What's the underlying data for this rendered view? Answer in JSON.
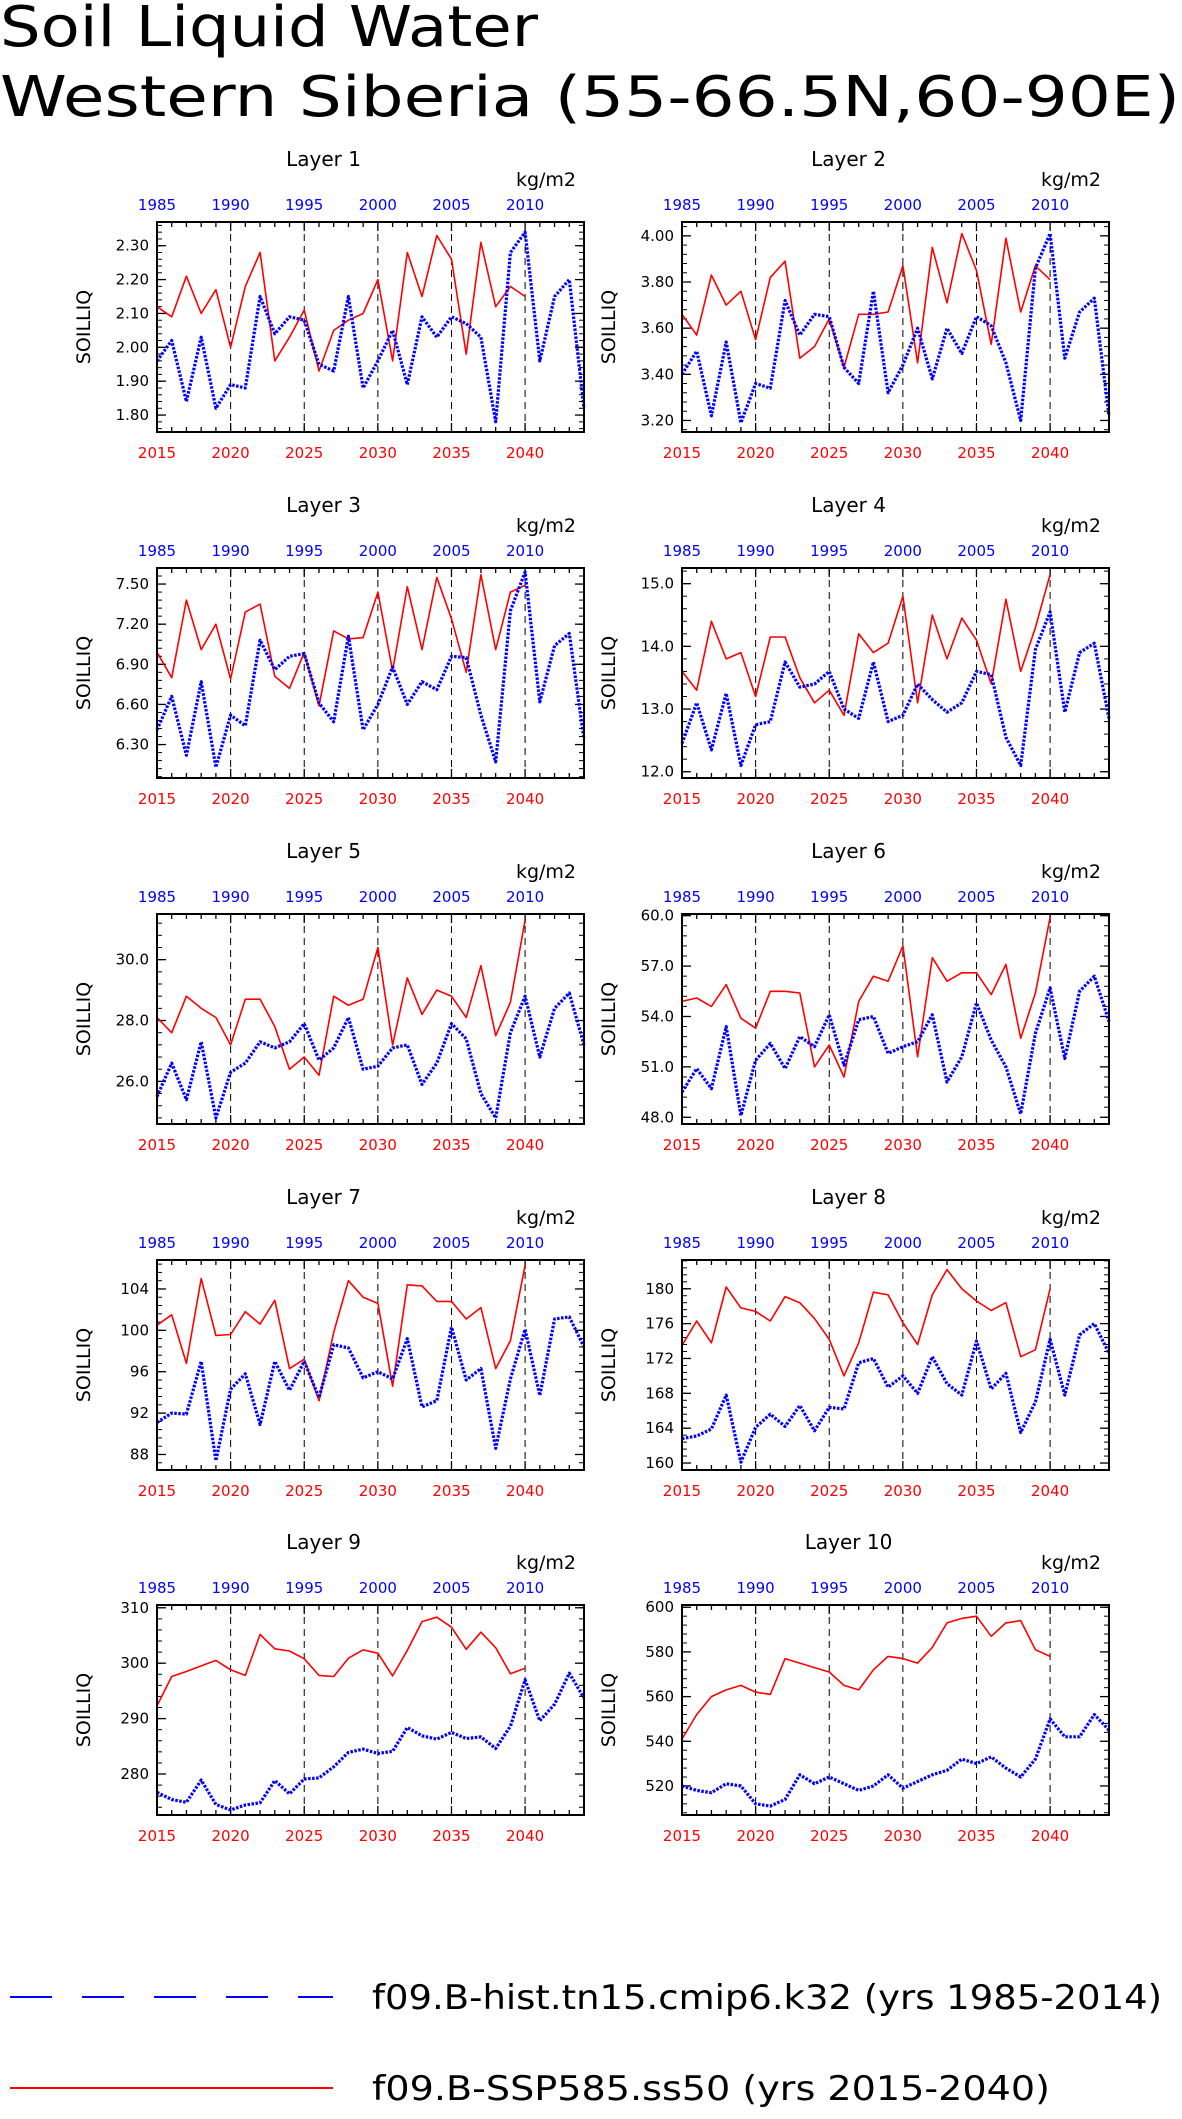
{
  "title_line1": "Soil Liquid Water",
  "title_line2": "Western Siberia (55-66.5N,60-90E)",
  "ylabel": "SOILLIQ",
  "units": "kg/m2",
  "legend": [
    {
      "label": "f09.B-hist.tn15.cmip6.k32 (yrs 1985-2014)",
      "color": "#0000ff",
      "style": "dashed"
    },
    {
      "label": "f09.B-SSP585.ss50 (yrs 2015-2040)",
      "color": "#ff0000",
      "style": "solid"
    }
  ],
  "chart_data": [
    {
      "type": "line",
      "title": "Layer 1",
      "xlabel": "",
      "ylabel": "SOILLIQ",
      "units": "kg/m2",
      "x_bottom_ticks": [
        "2015",
        "2020",
        "2025",
        "2030",
        "2035",
        "2040"
      ],
      "x_top_ticks": [
        "1985",
        "1990",
        "1995",
        "2000",
        "2005",
        "2010"
      ],
      "y_ticks": [
        "1.80",
        "1.90",
        "2.00",
        "2.10",
        "2.20",
        "2.30"
      ],
      "ylim": [
        1.75,
        2.37
      ],
      "series": [
        {
          "color": "#ff0000",
          "x_start": 2015,
          "values": [
            2.12,
            2.09,
            2.21,
            2.1,
            2.17,
            2.0,
            2.18,
            2.28,
            1.96,
            2.03,
            2.11,
            1.93,
            2.05,
            2.08,
            2.1,
            2.2,
            1.96,
            2.28,
            2.15,
            2.33,
            2.26,
            1.98,
            2.31,
            2.12,
            2.18,
            2.15
          ]
        },
        {
          "color": "#0000ff",
          "x_start": 2015,
          "values": [
            1.96,
            2.02,
            1.84,
            2.03,
            1.82,
            1.89,
            1.88,
            2.15,
            2.04,
            2.09,
            2.08,
            1.95,
            1.93,
            2.15,
            1.88,
            1.96,
            2.05,
            1.89,
            2.09,
            2.03,
            2.09,
            2.07,
            2.03,
            1.78,
            2.28,
            2.34,
            1.96,
            2.15,
            2.2,
            1.82
          ]
        }
      ]
    },
    {
      "type": "line",
      "title": "Layer 2",
      "xlabel": "",
      "ylabel": "SOILLIQ",
      "units": "kg/m2",
      "x_bottom_ticks": [
        "2015",
        "2020",
        "2025",
        "2030",
        "2035",
        "2040"
      ],
      "x_top_ticks": [
        "1985",
        "1990",
        "1995",
        "2000",
        "2005",
        "2010"
      ],
      "y_ticks": [
        "3.20",
        "3.40",
        "3.60",
        "3.80",
        "4.00"
      ],
      "ylim": [
        3.15,
        4.06
      ],
      "series": [
        {
          "color": "#ff0000",
          "x_start": 2015,
          "values": [
            3.66,
            3.57,
            3.83,
            3.7,
            3.76,
            3.55,
            3.82,
            3.89,
            3.47,
            3.52,
            3.64,
            3.43,
            3.66,
            3.66,
            3.67,
            3.87,
            3.45,
            3.95,
            3.71,
            4.01,
            3.85,
            3.53,
            3.99,
            3.67,
            3.87,
            3.81
          ]
        },
        {
          "color": "#0000ff",
          "x_start": 2015,
          "values": [
            3.4,
            3.5,
            3.22,
            3.54,
            3.19,
            3.36,
            3.34,
            3.72,
            3.57,
            3.66,
            3.65,
            3.43,
            3.36,
            3.76,
            3.32,
            3.44,
            3.6,
            3.38,
            3.6,
            3.49,
            3.65,
            3.61,
            3.45,
            3.2,
            3.86,
            4.01,
            3.47,
            3.67,
            3.73,
            3.22
          ]
        }
      ]
    },
    {
      "type": "line",
      "title": "Layer 3",
      "xlabel": "",
      "ylabel": "SOILLIQ",
      "units": "kg/m2",
      "x_bottom_ticks": [
        "2015",
        "2020",
        "2025",
        "2030",
        "2035",
        "2040"
      ],
      "x_top_ticks": [
        "1985",
        "1990",
        "1995",
        "2000",
        "2005",
        "2010"
      ],
      "y_ticks": [
        "6.30",
        "6.60",
        "6.90",
        "7.20",
        "7.50"
      ],
      "ylim": [
        6.05,
        7.62
      ],
      "series": [
        {
          "color": "#ff0000",
          "x_start": 2015,
          "values": [
            6.99,
            6.8,
            7.38,
            7.01,
            7.2,
            6.79,
            7.29,
            7.35,
            6.81,
            6.72,
            6.99,
            6.59,
            7.15,
            7.09,
            7.1,
            7.44,
            6.85,
            7.48,
            7.01,
            7.55,
            7.24,
            6.84,
            7.57,
            7.01,
            7.44,
            7.49
          ]
        },
        {
          "color": "#0000ff",
          "x_start": 2015,
          "values": [
            6.41,
            6.66,
            6.22,
            6.77,
            6.13,
            6.52,
            6.44,
            7.08,
            6.86,
            6.96,
            6.98,
            6.61,
            6.47,
            7.11,
            6.41,
            6.6,
            6.88,
            6.6,
            6.77,
            6.71,
            6.96,
            6.95,
            6.52,
            6.17,
            7.3,
            7.59,
            6.62,
            7.04,
            7.13,
            6.34
          ]
        }
      ]
    },
    {
      "type": "line",
      "title": "Layer 4",
      "xlabel": "",
      "ylabel": "SOILLIQ",
      "units": "kg/m2",
      "x_bottom_ticks": [
        "2015",
        "2020",
        "2025",
        "2030",
        "2035",
        "2040"
      ],
      "x_top_ticks": [
        "1985",
        "1990",
        "1995",
        "2000",
        "2005",
        "2010"
      ],
      "y_ticks": [
        "12.0",
        "13.0",
        "14.0",
        "15.0"
      ],
      "ylim": [
        11.9,
        15.25
      ],
      "series": [
        {
          "color": "#ff0000",
          "x_start": 2015,
          "values": [
            13.6,
            13.3,
            14.4,
            13.8,
            13.9,
            13.2,
            14.15,
            14.15,
            13.5,
            13.1,
            13.3,
            12.9,
            14.2,
            13.9,
            14.05,
            14.8,
            13.1,
            14.5,
            13.8,
            14.45,
            14.1,
            13.4,
            14.75,
            13.6,
            14.3,
            15.15
          ]
        },
        {
          "color": "#0000ff",
          "x_start": 2015,
          "values": [
            12.45,
            13.1,
            12.35,
            13.25,
            12.1,
            12.75,
            12.8,
            13.75,
            13.35,
            13.4,
            13.6,
            13.0,
            12.85,
            13.75,
            12.8,
            12.9,
            13.4,
            13.15,
            12.95,
            13.1,
            13.6,
            13.55,
            12.55,
            12.1,
            13.95,
            14.55,
            12.95,
            13.9,
            14.05,
            12.85
          ]
        }
      ]
    },
    {
      "type": "line",
      "title": "Layer 5",
      "xlabel": "",
      "ylabel": "SOILLIQ",
      "units": "kg/m2",
      "x_bottom_ticks": [
        "2015",
        "2020",
        "2025",
        "2030",
        "2035",
        "2040"
      ],
      "x_top_ticks": [
        "1985",
        "1990",
        "1995",
        "2000",
        "2005",
        "2010"
      ],
      "y_ticks": [
        "26.0",
        "28.0",
        "30.0"
      ],
      "ylim": [
        24.6,
        31.5
      ],
      "series": [
        {
          "color": "#ff0000",
          "x_start": 2015,
          "values": [
            28.1,
            27.6,
            28.8,
            28.4,
            28.1,
            27.2,
            28.7,
            28.7,
            27.8,
            26.4,
            26.8,
            26.2,
            28.8,
            28.5,
            28.7,
            30.4,
            27.2,
            29.4,
            28.2,
            29.0,
            28.8,
            28.1,
            29.8,
            27.5,
            28.6,
            31.3
          ]
        },
        {
          "color": "#0000ff",
          "x_start": 2015,
          "values": [
            25.5,
            26.6,
            25.4,
            27.3,
            24.8,
            26.3,
            26.6,
            27.3,
            27.1,
            27.3,
            27.9,
            26.7,
            27.1,
            28.1,
            26.4,
            26.5,
            27.1,
            27.2,
            25.9,
            26.6,
            27.9,
            27.4,
            25.6,
            24.8,
            27.6,
            28.8,
            26.8,
            28.4,
            28.9,
            27.2
          ]
        }
      ]
    },
    {
      "type": "line",
      "title": "Layer 6",
      "xlabel": "",
      "ylabel": "SOILLIQ",
      "units": "kg/m2",
      "x_bottom_ticks": [
        "2015",
        "2020",
        "2025",
        "2030",
        "2035",
        "2040"
      ],
      "x_top_ticks": [
        "1985",
        "1990",
        "1995",
        "2000",
        "2005",
        "2010"
      ],
      "y_ticks": [
        "48.0",
        "51.0",
        "54.0",
        "57.0",
        "60.0"
      ],
      "ylim": [
        47.6,
        60.1
      ],
      "series": [
        {
          "color": "#ff0000",
          "x_start": 2015,
          "values": [
            54.9,
            55.1,
            54.6,
            55.9,
            53.9,
            53.3,
            55.5,
            55.5,
            55.4,
            51.0,
            52.3,
            50.4,
            54.9,
            56.4,
            56.1,
            58.2,
            51.6,
            57.5,
            56.1,
            56.6,
            56.6,
            55.3,
            57.1,
            52.7,
            55.4,
            59.9
          ]
        },
        {
          "color": "#0000ff",
          "x_start": 2015,
          "values": [
            49.5,
            50.9,
            49.7,
            53.4,
            48.1,
            51.4,
            52.4,
            50.9,
            52.8,
            52.2,
            54.1,
            51.1,
            53.8,
            54.0,
            51.8,
            52.2,
            52.5,
            54.1,
            50.1,
            51.6,
            54.8,
            52.6,
            51.0,
            48.2,
            53.0,
            55.7,
            51.5,
            55.5,
            56.4,
            53.7
          ]
        }
      ]
    },
    {
      "type": "line",
      "title": "Layer 7",
      "xlabel": "",
      "ylabel": "SOILLIQ",
      "units": "kg/m2",
      "x_bottom_ticks": [
        "2015",
        "2020",
        "2025",
        "2030",
        "2035",
        "2040"
      ],
      "x_top_ticks": [
        "1985",
        "1990",
        "1995",
        "2000",
        "2005",
        "2010"
      ],
      "y_ticks": [
        "88",
        "92",
        "96",
        "100",
        "104"
      ],
      "ylim": [
        86.5,
        106.8
      ],
      "series": [
        {
          "color": "#ff0000",
          "x_start": 2015,
          "values": [
            100.5,
            101.5,
            96.8,
            105.0,
            99.5,
            99.6,
            101.8,
            100.6,
            102.9,
            96.3,
            97.2,
            93.2,
            99.8,
            104.8,
            103.2,
            102.6,
            94.6,
            104.4,
            104.3,
            102.8,
            102.8,
            101.1,
            102.2,
            96.3,
            99.0,
            106.3
          ]
        },
        {
          "color": "#0000ff",
          "x_start": 2015,
          "values": [
            91.1,
            92.0,
            91.9,
            97.0,
            87.4,
            94.3,
            95.8,
            90.9,
            97.0,
            94.2,
            97.0,
            93.5,
            98.6,
            98.3,
            95.4,
            96.0,
            95.3,
            99.2,
            92.6,
            93.2,
            100.3,
            95.2,
            96.3,
            88.6,
            95.3,
            100.1,
            93.7,
            101.1,
            101.3,
            98.4
          ]
        }
      ]
    },
    {
      "type": "line",
      "title": "Layer 8",
      "xlabel": "",
      "ylabel": "SOILLIQ",
      "units": "kg/m2",
      "x_bottom_ticks": [
        "2015",
        "2020",
        "2025",
        "2030",
        "2035",
        "2040"
      ],
      "x_top_ticks": [
        "1985",
        "1990",
        "1995",
        "2000",
        "2005",
        "2010"
      ],
      "y_ticks": [
        "160",
        "164",
        "168",
        "172",
        "176",
        "180"
      ],
      "ylim": [
        159.2,
        183.3
      ],
      "series": [
        {
          "color": "#ff0000",
          "x_start": 2015,
          "values": [
            173.5,
            176.3,
            173.8,
            180.2,
            177.8,
            177.4,
            176.3,
            179.1,
            178.4,
            176.6,
            174.2,
            170.0,
            173.8,
            179.6,
            179.3,
            176.1,
            173.6,
            179.3,
            182.2,
            180.0,
            178.6,
            177.5,
            178.4,
            172.2,
            173.0,
            180.0
          ]
        },
        {
          "color": "#0000ff",
          "x_start": 2015,
          "values": [
            162.8,
            163.1,
            163.9,
            167.8,
            160.1,
            164.1,
            165.6,
            164.2,
            166.6,
            163.7,
            166.4,
            166.2,
            171.5,
            172.0,
            168.7,
            170.0,
            168.0,
            172.2,
            169.1,
            167.8,
            174.0,
            168.5,
            170.3,
            163.5,
            167.0,
            174.2,
            167.8,
            174.7,
            176.0,
            172.6
          ]
        }
      ]
    },
    {
      "type": "line",
      "title": "Layer 9",
      "xlabel": "",
      "ylabel": "SOILLIQ",
      "units": "kg/m2",
      "x_bottom_ticks": [
        "2015",
        "2020",
        "2025",
        "2030",
        "2035",
        "2040"
      ],
      "x_top_ticks": [
        "1985",
        "1990",
        "1995",
        "2000",
        "2005",
        "2010"
      ],
      "y_ticks": [
        "280",
        "290",
        "300",
        "310"
      ],
      "ylim": [
        272.6,
        310.5
      ],
      "series": [
        {
          "color": "#ff0000",
          "x_start": 2015,
          "values": [
            292.3,
            297.6,
            298.5,
            299.5,
            300.5,
            298.8,
            297.8,
            305.2,
            302.6,
            302.2,
            300.8,
            297.8,
            297.6,
            300.9,
            302.4,
            301.8,
            297.7,
            302.3,
            307.5,
            308.3,
            306.5,
            302.5,
            305.6,
            302.8,
            298.1,
            299.1
          ]
        },
        {
          "color": "#0000ff",
          "x_start": 2015,
          "values": [
            276.7,
            275.4,
            274.9,
            278.9,
            274.5,
            273.5,
            274.4,
            274.8,
            278.8,
            276.4,
            279.1,
            279.3,
            281.3,
            283.9,
            284.5,
            283.7,
            284.1,
            288.4,
            286.9,
            286.3,
            287.5,
            286.4,
            286.7,
            284.6,
            288.6,
            297.0,
            289.6,
            292.6,
            298.2,
            293.7
          ]
        }
      ]
    },
    {
      "type": "line",
      "title": "Layer 10",
      "xlabel": "",
      "ylabel": "SOILLIQ",
      "units": "kg/m2",
      "x_bottom_ticks": [
        "2015",
        "2020",
        "2025",
        "2030",
        "2035",
        "2040"
      ],
      "x_top_ticks": [
        "1985",
        "1990",
        "1995",
        "2000",
        "2005",
        "2010"
      ],
      "y_ticks": [
        "520",
        "540",
        "560",
        "580",
        "600"
      ],
      "ylim": [
        507,
        601
      ],
      "series": [
        {
          "color": "#ff0000",
          "x_start": 2015,
          "values": [
            541,
            552,
            560,
            563,
            565,
            562,
            561,
            577,
            575,
            573,
            571,
            565,
            563,
            572,
            578,
            577,
            575,
            582,
            593,
            595,
            596,
            587,
            593,
            594,
            581,
            578
          ]
        },
        {
          "color": "#0000ff",
          "x_start": 2015,
          "values": [
            520,
            518,
            517,
            521,
            520,
            512,
            511,
            514,
            525,
            521,
            524,
            521,
            518,
            520,
            525,
            519,
            522,
            525,
            527,
            532,
            530,
            533,
            528,
            524,
            532,
            550,
            542,
            542,
            552,
            545
          ]
        }
      ]
    }
  ]
}
